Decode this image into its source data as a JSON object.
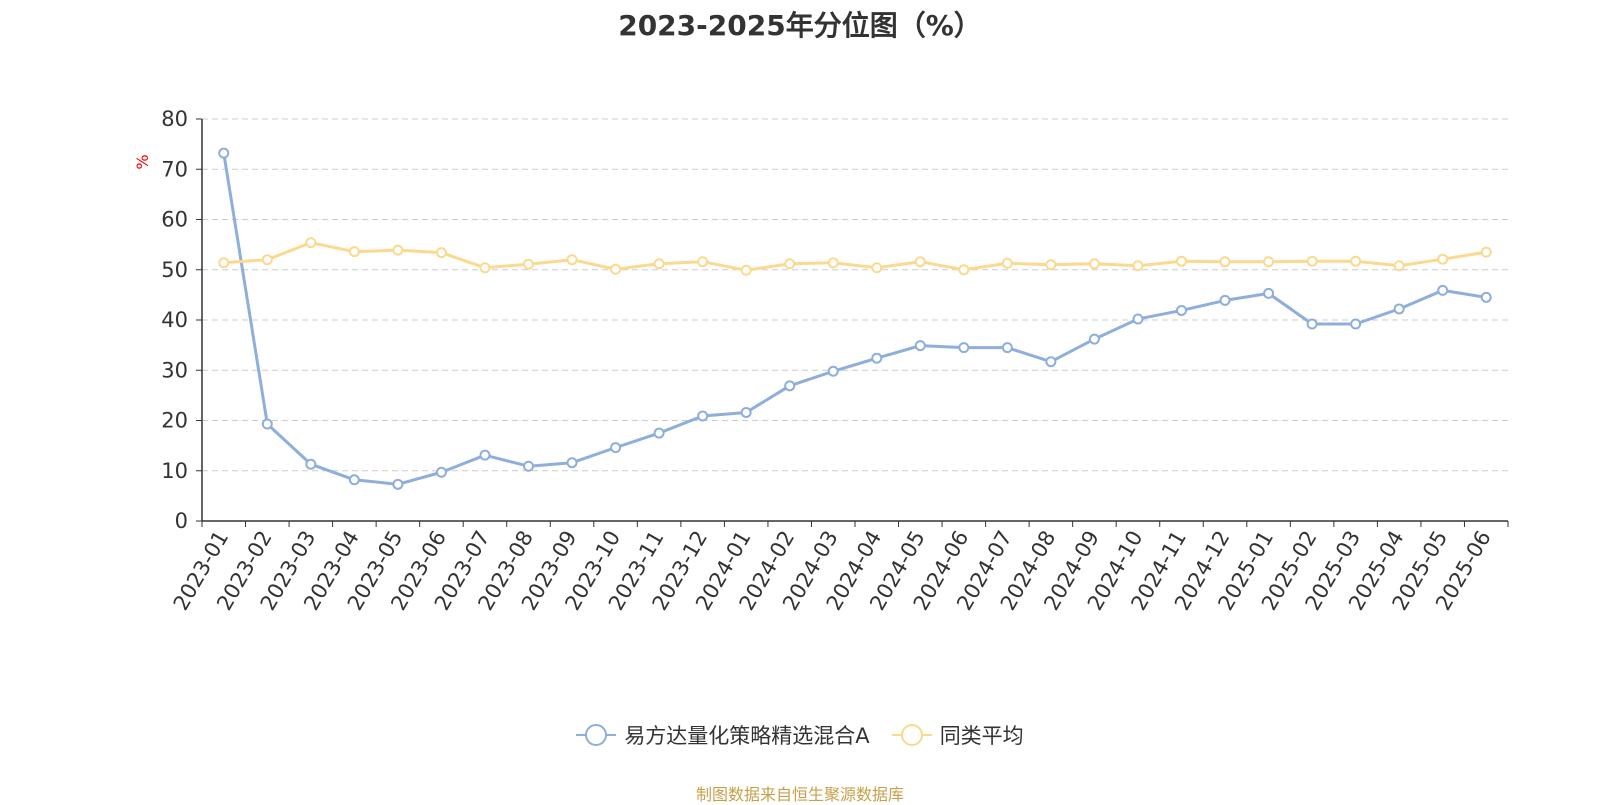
{
  "title": "2023-2025年分位图（%）",
  "source_note": "制图数据来自恒生聚源数据库",
  "colors": {
    "fund": "#8eaedb",
    "avg": "#fbd98e",
    "unit": "#ff0000",
    "grid": "#cccccc",
    "axis": "#333333",
    "source": "#c8a04a"
  },
  "chart_data": {
    "type": "line",
    "title": "2023-2025年分位图（%）",
    "ylabel": "%",
    "ylim": [
      0,
      80
    ],
    "yticks": [
      0,
      10,
      20,
      30,
      40,
      50,
      60,
      70,
      80
    ],
    "grid": true,
    "legend_position": "bottom-center",
    "categories": [
      "2023-01",
      "2023-02",
      "2023-03",
      "2023-04",
      "2023-05",
      "2023-06",
      "2023-07",
      "2023-08",
      "2023-09",
      "2023-10",
      "2023-11",
      "2023-12",
      "2024-01",
      "2024-02",
      "2024-03",
      "2024-04",
      "2024-05",
      "2024-06",
      "2024-07",
      "2024-08",
      "2024-09",
      "2024-10",
      "2024-11",
      "2024-12",
      "2025-01",
      "2025-02",
      "2025-03",
      "2025-04",
      "2025-05",
      "2025-06"
    ],
    "series": [
      {
        "name": "易方达量化策略精选混合A",
        "color": "#8eaedb",
        "values": [
          73.2,
          19.3,
          11.3,
          8.2,
          7.3,
          9.7,
          13.1,
          10.9,
          11.6,
          14.6,
          17.5,
          20.9,
          21.6,
          26.9,
          29.8,
          32.4,
          34.9,
          34.5,
          34.5,
          31.7,
          36.2,
          40.2,
          41.9,
          43.9,
          45.3,
          39.2,
          39.2,
          42.2,
          45.9,
          44.5
        ]
      },
      {
        "name": "同类平均",
        "color": "#fbd98e",
        "values": [
          51.4,
          52.0,
          55.4,
          53.6,
          53.9,
          53.4,
          50.4,
          51.1,
          52.0,
          50.1,
          51.2,
          51.6,
          49.9,
          51.2,
          51.4,
          50.4,
          51.6,
          50.0,
          51.3,
          51.0,
          51.2,
          50.8,
          51.7,
          51.6,
          51.6,
          51.7,
          51.7,
          50.8,
          52.1,
          53.5
        ]
      }
    ]
  }
}
